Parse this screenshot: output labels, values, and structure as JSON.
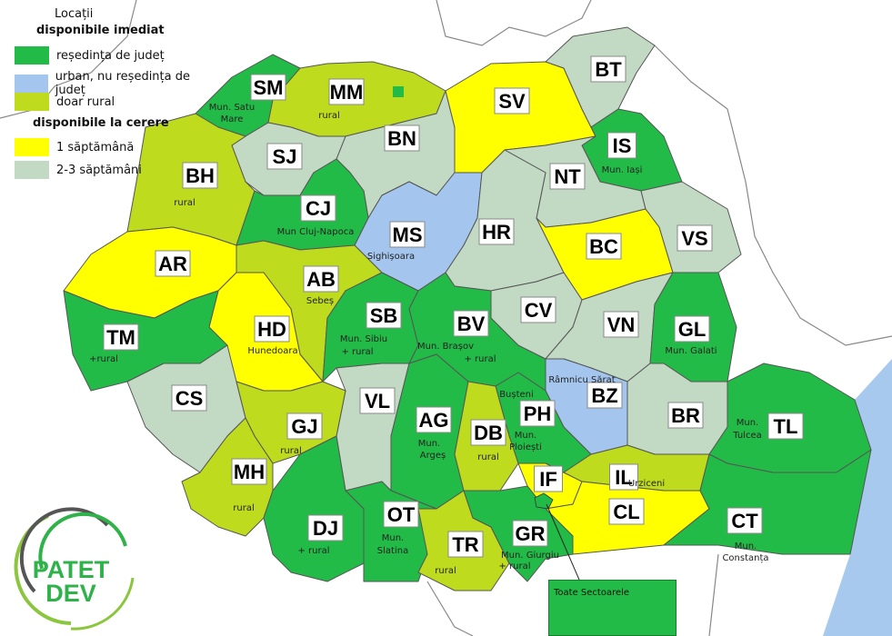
{
  "legend": {
    "title": "Locații",
    "immediate_heading": "disponibile imediat",
    "on_request_heading": "disponibile la cerere",
    "items": [
      {
        "key": "resedinta",
        "label": "reședința de județ",
        "color": "#22bb48"
      },
      {
        "key": "urban",
        "label": "urban, nu reședința de județ",
        "color": "#a4c6ee"
      },
      {
        "key": "rural",
        "label": "doar rural",
        "color": "#bedb1e"
      },
      {
        "key": "week1",
        "label": "1 săptămână",
        "color": "#ffff00"
      },
      {
        "key": "week23",
        "label": "2-3 săptămâni",
        "color": "#c2d9c4"
      }
    ]
  },
  "colors": {
    "sea": "#a7c9ee",
    "border": "#555555",
    "neighbor_border": "#888888"
  },
  "counties": [
    {
      "code": "SM",
      "cat": "resedinta",
      "notes": [
        "Mun. Satu",
        "Mare"
      ]
    },
    {
      "code": "MM",
      "cat": "rural",
      "notes": [
        "rural"
      ]
    },
    {
      "code": "BN",
      "cat": "week23",
      "notes": []
    },
    {
      "code": "SV",
      "cat": "week1",
      "notes": []
    },
    {
      "code": "BT",
      "cat": "week23",
      "notes": []
    },
    {
      "code": "IS",
      "cat": "resedinta",
      "notes": [
        "Mun. Iași"
      ]
    },
    {
      "code": "SJ",
      "cat": "week23",
      "notes": []
    },
    {
      "code": "BH",
      "cat": "rural",
      "notes": [
        "rural"
      ]
    },
    {
      "code": "CJ",
      "cat": "resedinta",
      "notes": [
        "Mun Cluj-Napoca"
      ]
    },
    {
      "code": "NT",
      "cat": "week23",
      "notes": []
    },
    {
      "code": "MS",
      "cat": "urban",
      "notes": [
        "Sighișoara"
      ]
    },
    {
      "code": "HR",
      "cat": "week23",
      "notes": []
    },
    {
      "code": "BC",
      "cat": "week1",
      "notes": []
    },
    {
      "code": "VS",
      "cat": "week23",
      "notes": []
    },
    {
      "code": "AR",
      "cat": "week1",
      "notes": []
    },
    {
      "code": "AB",
      "cat": "rural",
      "notes": [
        "Sebeș"
      ]
    },
    {
      "code": "SB",
      "cat": "resedinta",
      "notes": [
        "Mun. Sibiu",
        "+ rural"
      ]
    },
    {
      "code": "BV",
      "cat": "resedinta",
      "notes": [
        "Mun. Brașov",
        "+ rural"
      ]
    },
    {
      "code": "CV",
      "cat": "week23",
      "notes": []
    },
    {
      "code": "VN",
      "cat": "week23",
      "notes": []
    },
    {
      "code": "GL",
      "cat": "resedinta",
      "notes": [
        "Mun. Galati"
      ]
    },
    {
      "code": "HD",
      "cat": "week1",
      "notes": [
        "Hunedoara"
      ]
    },
    {
      "code": "TM",
      "cat": "resedinta",
      "notes": [
        "+rural"
      ]
    },
    {
      "code": "CS",
      "cat": "week23",
      "notes": []
    },
    {
      "code": "VL",
      "cat": "week23",
      "notes": []
    },
    {
      "code": "BZ",
      "cat": "urban",
      "notes": [
        "Râmnicu Sărat"
      ]
    },
    {
      "code": "BR",
      "cat": "week23",
      "notes": []
    },
    {
      "code": "AG",
      "cat": "resedinta",
      "notes": [
        "Mun.",
        "Argeș"
      ]
    },
    {
      "code": "PH",
      "cat": "resedinta",
      "notes": [
        "Bușteni",
        "Mun.",
        "Ploiești"
      ]
    },
    {
      "code": "DB",
      "cat": "rural",
      "notes": [
        "rural"
      ]
    },
    {
      "code": "GJ",
      "cat": "rural",
      "notes": [
        "rural"
      ]
    },
    {
      "code": "TL",
      "cat": "resedinta",
      "notes": [
        "Mun.",
        "Tulcea"
      ]
    },
    {
      "code": "MH",
      "cat": "rural",
      "notes": [
        "rural"
      ]
    },
    {
      "code": "IF",
      "cat": "week1",
      "notes": []
    },
    {
      "code": "IL",
      "cat": "rural",
      "notes": [
        "Urziceni"
      ]
    },
    {
      "code": "CL",
      "cat": "week1",
      "notes": []
    },
    {
      "code": "CT",
      "cat": "resedinta",
      "notes": [
        "Mun.",
        "Constanța"
      ]
    },
    {
      "code": "OT",
      "cat": "resedinta",
      "notes": [
        "Mun.",
        "Slatina"
      ]
    },
    {
      "code": "DJ",
      "cat": "resedinta",
      "notes": [
        "+ rural"
      ]
    },
    {
      "code": "TR",
      "cat": "rural",
      "notes": [
        "rural"
      ]
    },
    {
      "code": "GR",
      "cat": "resedinta",
      "notes": [
        "Mun. Giurgiu",
        "+ rural"
      ]
    }
  ],
  "callout": {
    "label": "Toate Sectoarele"
  },
  "logo": {
    "line1": "PATET",
    "line2": "DEV"
  }
}
